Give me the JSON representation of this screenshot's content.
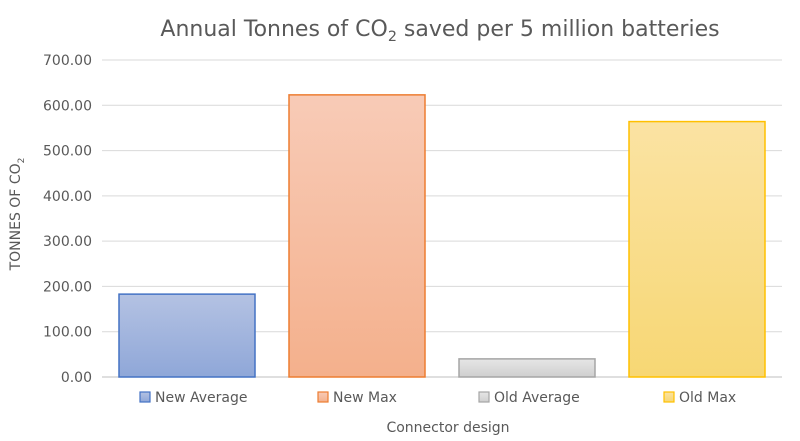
{
  "chart_data": {
    "type": "bar",
    "title": {
      "main": "Annual Tonnes of CO",
      "subscript": "2",
      "rest": " saved per 5 million batteries"
    },
    "xlabel": "Connector design",
    "ylabel": {
      "main": "TONNES OF CO",
      "subscript": "2"
    },
    "ylim": [
      0,
      700
    ],
    "yticks": [
      "0.00",
      "100.00",
      "200.00",
      "300.00",
      "400.00",
      "500.00",
      "600.00",
      "700.00"
    ],
    "grid": true,
    "legend_position": "bottom",
    "series": [
      {
        "name": "New Average",
        "value": 183,
        "color_top": "#b4c2e3",
        "color_bottom": "#8fa7d8",
        "stroke": "#4472c4"
      },
      {
        "name": "New Max",
        "value": 623,
        "color_top": "#f8cbb7",
        "color_bottom": "#f4b08c",
        "stroke": "#ed7d31"
      },
      {
        "name": "Old Average",
        "value": 40,
        "color_top": "#e6e6e6",
        "color_bottom": "#cfcfcf",
        "stroke": "#a5a5a5"
      },
      {
        "name": "Old Max",
        "value": 564,
        "color_top": "#fbe3a3",
        "color_bottom": "#f7d774",
        "stroke": "#ffc000"
      }
    ]
  }
}
